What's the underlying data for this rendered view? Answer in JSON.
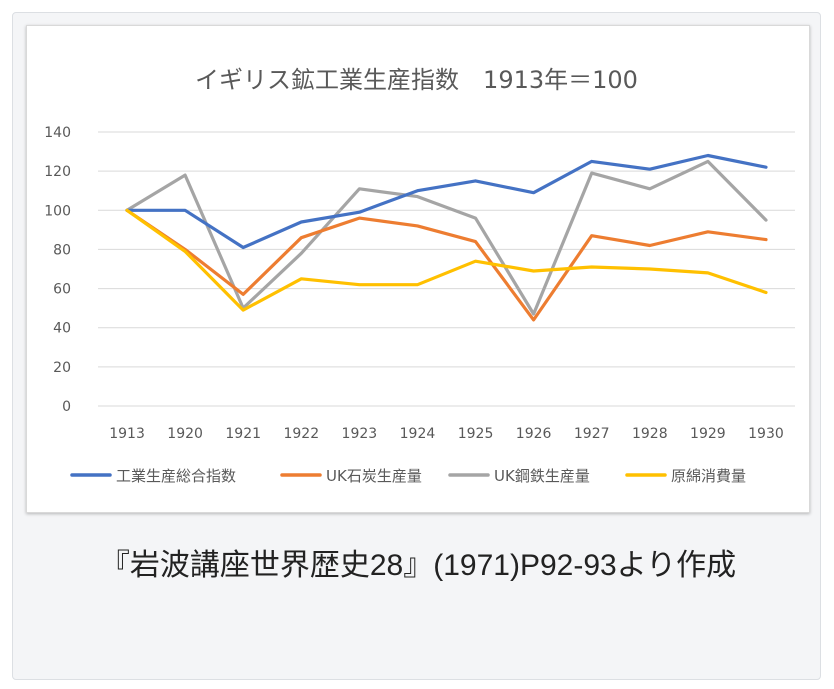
{
  "chart_data": {
    "type": "line",
    "title": "イギリス鉱工業生産指数　1913年＝100",
    "xlabel": "",
    "ylabel": "",
    "categories": [
      "1913",
      "1920",
      "1921",
      "1922",
      "1923",
      "1924",
      "1925",
      "1926",
      "1927",
      "1928",
      "1929",
      "1930"
    ],
    "ylim": [
      0,
      140
    ],
    "yticks": [
      0,
      20,
      40,
      60,
      80,
      100,
      120,
      140
    ],
    "grid": true,
    "legend_position": "bottom",
    "series": [
      {
        "name": "工業生産総合指数",
        "color": "#4472c4",
        "values": [
          100,
          100,
          81,
          94,
          99,
          110,
          115,
          109,
          125,
          121,
          128,
          122
        ]
      },
      {
        "name": "UK石炭生産量",
        "color": "#ed7d31",
        "values": [
          100,
          80,
          57,
          86,
          96,
          92,
          84,
          44,
          87,
          82,
          89,
          85
        ]
      },
      {
        "name": "UK鋼鉄生産量",
        "color": "#a5a5a5",
        "values": [
          100,
          118,
          50,
          78,
          111,
          107,
          96,
          47,
          119,
          111,
          125,
          95
        ]
      },
      {
        "name": "原綿消費量",
        "color": "#ffc000",
        "values": [
          100,
          79,
          49,
          65,
          62,
          62,
          74,
          69,
          71,
          70,
          68,
          58
        ]
      }
    ]
  },
  "caption": "『岩波講座世界歴史28』(1971)P92-93より作成"
}
